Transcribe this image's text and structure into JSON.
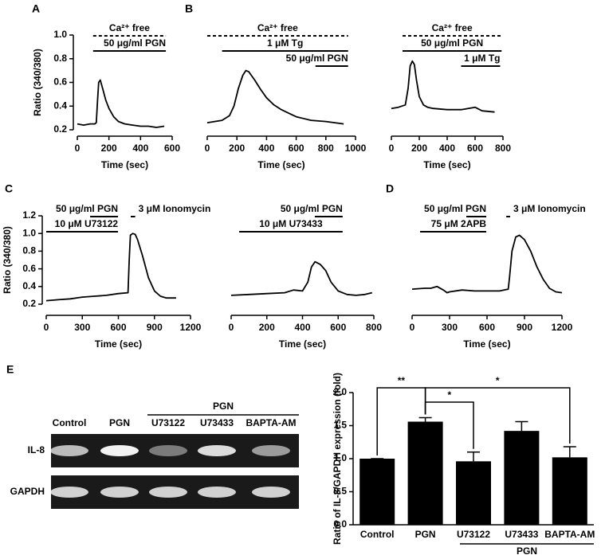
{
  "chart_data": [
    {
      "type": "line",
      "panel": "A",
      "y_label": "Ratio (340/380)",
      "x_label": "Time (sec)",
      "xlim": [
        0,
        600
      ],
      "xticks": [
        0,
        200,
        400,
        600
      ],
      "ylim": [
        0.2,
        1.0
      ],
      "yticks": [
        {
          "value": 0.2,
          "label": "0.2"
        },
        {
          "value": 0.4,
          "label": "0.4"
        },
        {
          "value": 0.6,
          "label": "0.6"
        },
        {
          "value": 0.8,
          "label": "0.8"
        },
        {
          "value": 1.0,
          "label": "1.0"
        }
      ],
      "color": "#000000",
      "x": [
        0,
        40,
        80,
        110,
        120,
        128,
        135,
        145,
        160,
        180,
        200,
        230,
        260,
        300,
        350,
        400,
        450,
        500,
        550
      ],
      "values": [
        0.25,
        0.24,
        0.25,
        0.25,
        0.26,
        0.45,
        0.6,
        0.62,
        0.55,
        0.45,
        0.38,
        0.31,
        0.27,
        0.25,
        0.24,
        0.23,
        0.23,
        0.22,
        0.23
      ],
      "treatments": [
        {
          "label": "Ca²⁺ free",
          "start": 100,
          "end": 560,
          "dashed": true
        },
        {
          "label": "50 μg/ml PGN",
          "start": 100,
          "end": 560
        }
      ]
    },
    {
      "type": "line",
      "panel": "B",
      "x_label": "Time (sec)",
      "xlim": [
        0,
        1000
      ],
      "xticks": [
        0,
        200,
        400,
        600,
        800,
        1000
      ],
      "ylim": [
        0.2,
        1.0
      ],
      "color": "#000000",
      "x": [
        0,
        50,
        100,
        150,
        180,
        210,
        240,
        260,
        280,
        320,
        360,
        400,
        450,
        500,
        550,
        600,
        700,
        800,
        920
      ],
      "values": [
        0.26,
        0.27,
        0.28,
        0.32,
        0.4,
        0.55,
        0.66,
        0.7,
        0.69,
        0.62,
        0.54,
        0.47,
        0.41,
        0.37,
        0.34,
        0.31,
        0.28,
        0.27,
        0.25
      ],
      "treatments": [
        {
          "label": "Ca²⁺ free",
          "start": 0,
          "end": 950,
          "dashed": true
        },
        {
          "label": "1 μM Tg",
          "start": 100,
          "end": 950
        },
        {
          "label": "50 μg/ml PGN",
          "start": 730,
          "end": 950
        }
      ]
    },
    {
      "type": "line",
      "x_label": "Time (sec)",
      "xlim": [
        0,
        800
      ],
      "xticks": [
        0,
        200,
        400,
        600,
        800
      ],
      "ylim": [
        0.2,
        1.0
      ],
      "color": "#000000",
      "x": [
        0,
        50,
        100,
        120,
        135,
        150,
        165,
        180,
        200,
        230,
        260,
        300,
        400,
        500,
        550,
        600,
        650,
        740
      ],
      "values": [
        0.38,
        0.39,
        0.41,
        0.55,
        0.74,
        0.78,
        0.75,
        0.62,
        0.48,
        0.41,
        0.39,
        0.38,
        0.37,
        0.37,
        0.38,
        0.39,
        0.36,
        0.35
      ],
      "treatments": [
        {
          "label": "Ca²⁺ free",
          "start": 80,
          "end": 790,
          "dashed": true
        },
        {
          "label": "50 μg/ml PGN",
          "start": 80,
          "end": 790
        },
        {
          "label": "1 μM Tg",
          "start": 500,
          "end": 780
        }
      ]
    },
    {
      "type": "line",
      "panel": "C",
      "y_label": "Ratio (340/380)",
      "x_label": "Time (sec)",
      "xlim": [
        0,
        1200
      ],
      "xticks": [
        0,
        300,
        600,
        900,
        1200
      ],
      "ylim": [
        0.2,
        1.2
      ],
      "yticks": [
        {
          "value": 0.2,
          "label": "0.2"
        },
        {
          "value": 0.4,
          "label": "0.4"
        },
        {
          "value": 0.6,
          "label": "0.6"
        },
        {
          "value": 0.8,
          "label": "0.8"
        },
        {
          "value": 1.0,
          "label": "1.0"
        },
        {
          "value": 1.2,
          "label": "1.2"
        }
      ],
      "color": "#000000",
      "x": [
        0,
        100,
        200,
        300,
        400,
        500,
        600,
        680,
        690,
        700,
        720,
        740,
        760,
        800,
        850,
        900,
        950,
        1000,
        1080
      ],
      "values": [
        0.24,
        0.25,
        0.26,
        0.28,
        0.29,
        0.3,
        0.32,
        0.33,
        0.7,
        0.98,
        1.0,
        0.99,
        0.93,
        0.75,
        0.5,
        0.35,
        0.29,
        0.27,
        0.27
      ],
      "treatments": [
        {
          "label": "50 μg/ml PGN",
          "start": 365,
          "end": 597
        },
        {
          "label": "10 μM U73122",
          "start": 0,
          "end": 597
        },
        {
          "label": "3 μM Ionomycin",
          "start": 703,
          "end": 740
        }
      ]
    },
    {
      "type": "line",
      "x_label": "Time (sec)",
      "xlim": [
        0,
        800
      ],
      "xticks": [
        0,
        200,
        400,
        600,
        800
      ],
      "ylim": [
        0.2,
        1.2
      ],
      "color": "#000000",
      "x": [
        0,
        100,
        200,
        300,
        350,
        400,
        430,
        450,
        470,
        500,
        530,
        560,
        600,
        650,
        700,
        750,
        790
      ],
      "values": [
        0.3,
        0.31,
        0.32,
        0.33,
        0.36,
        0.35,
        0.45,
        0.62,
        0.68,
        0.65,
        0.58,
        0.45,
        0.35,
        0.31,
        0.3,
        0.31,
        0.33
      ],
      "treatments": [
        {
          "label": "50 μg/ml PGN",
          "start": 469,
          "end": 625
        },
        {
          "label": "10 μM U73433",
          "start": 45,
          "end": 625
        }
      ]
    },
    {
      "type": "line",
      "panel": "D",
      "x_label": "Time (sec)",
      "xlim": [
        0,
        1200
      ],
      "xticks": [
        0,
        300,
        600,
        900,
        1200
      ],
      "ylim": [
        0.2,
        1.2
      ],
      "color": "#000000",
      "x": [
        0,
        100,
        150,
        200,
        250,
        280,
        300,
        400,
        500,
        600,
        700,
        770,
        780,
        800,
        830,
        860,
        900,
        950,
        1000,
        1050,
        1100,
        1150,
        1200
      ],
      "values": [
        0.37,
        0.38,
        0.38,
        0.4,
        0.36,
        0.33,
        0.34,
        0.36,
        0.35,
        0.35,
        0.35,
        0.37,
        0.5,
        0.8,
        0.96,
        0.98,
        0.93,
        0.8,
        0.62,
        0.48,
        0.38,
        0.34,
        0.33
      ],
      "treatments": [
        {
          "label": "50 μg/ml PGN",
          "start": 434,
          "end": 594
        },
        {
          "label": "75 μM 2APB",
          "start": 64,
          "end": 594
        },
        {
          "label": "3 μM Ionomycin",
          "start": 754,
          "end": 785
        }
      ]
    },
    {
      "type": "bar",
      "panel": "E",
      "y_label": "Ratio of IL-8/GAPDH expression (fold)",
      "categories": [
        "Control",
        "PGN",
        "U73122",
        "U73433",
        "BAPTA-AM"
      ],
      "group_label": "PGN",
      "values": [
        1.0,
        1.56,
        0.96,
        1.42,
        1.02
      ],
      "errors": [
        0,
        0.06,
        0.14,
        0.14,
        0.16
      ],
      "color": "#000000",
      "ylim": [
        0,
        2.0
      ],
      "yticks": [
        {
          "value": 0,
          "label": "0.0"
        },
        {
          "value": 0.5,
          "label": "0.5"
        },
        {
          "value": 1.0,
          "label": "1.0"
        },
        {
          "value": 1.5,
          "label": "1.5"
        },
        {
          "value": 2.0,
          "label": "2.0"
        }
      ],
      "significance": [
        {
          "from": 0,
          "to": 1,
          "label": "**"
        },
        {
          "from": 1,
          "to": 2,
          "label": "*"
        },
        {
          "from": 1,
          "to": 4,
          "label": "*"
        }
      ]
    }
  ],
  "gel": {
    "lanes": [
      "Control",
      "PGN",
      "U73122",
      "U73433",
      "BAPTA-AM"
    ],
    "group_label": "PGN",
    "rows": [
      "IL-8",
      "GAPDH"
    ]
  }
}
